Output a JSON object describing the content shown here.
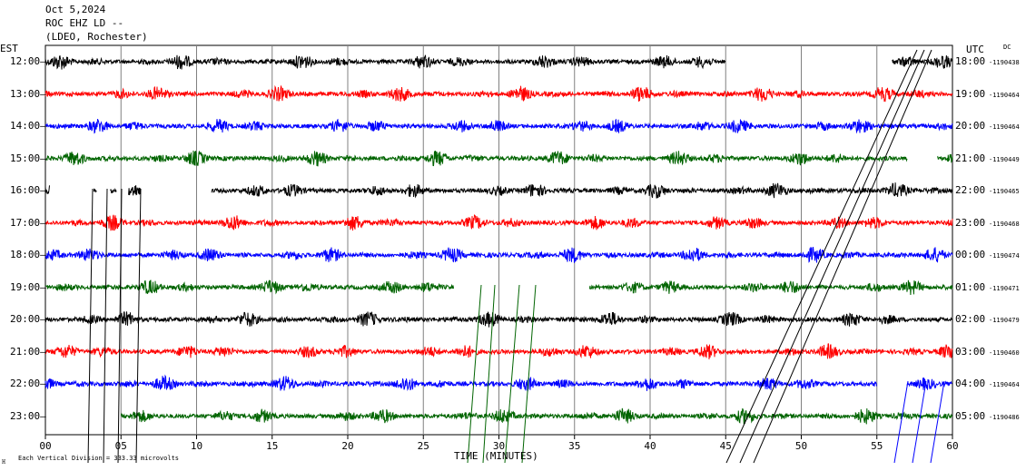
{
  "header": {
    "line1": "Oct 5,2024",
    "line2": "ROC EHZ LD --",
    "line3": "(LDEO, Rochester)"
  },
  "left_axis_title": "EST",
  "right_axis_title": "UTC",
  "dc_label": "DC",
  "footer_note": "Each Vertical Division = 333.33 microvolts",
  "footer_mark": "ℍ",
  "colors": {
    "black": "#000000",
    "red": "#ff0000",
    "blue": "#0000ff",
    "green": "#006400",
    "grid": "#808080"
  },
  "chart_data": {
    "type": "line",
    "title": "ROC EHZ LD --",
    "xlabel": "TIME (MINUTES)",
    "x_ticks": [
      "00",
      "05",
      "10",
      "15",
      "20",
      "25",
      "30",
      "35",
      "40",
      "45",
      "50",
      "55",
      "60"
    ],
    "xlim": [
      0,
      60
    ],
    "grid": true,
    "rows": [
      {
        "est": "12:00",
        "utc": "18:00",
        "dc": "-1190438",
        "color": "black",
        "segments": [
          [
            0,
            45
          ],
          [
            56,
            60
          ]
        ]
      },
      {
        "est": "13:00",
        "utc": "19:00",
        "dc": "-1190464",
        "color": "red",
        "segments": [
          [
            0,
            60
          ]
        ]
      },
      {
        "est": "14:00",
        "utc": "20:00",
        "dc": "-1190464",
        "color": "blue",
        "segments": [
          [
            0,
            60
          ]
        ]
      },
      {
        "est": "15:00",
        "utc": "21:00",
        "dc": "-1190449",
        "color": "green",
        "segments": [
          [
            0,
            57
          ],
          [
            59,
            60
          ]
        ]
      },
      {
        "est": "16:00",
        "utc": "22:00",
        "dc": "-1190465",
        "color": "black",
        "segments": [
          [
            0,
            0.3
          ],
          [
            3.2,
            3.4
          ],
          [
            4.3,
            4.7
          ],
          [
            5.5,
            6.3
          ],
          [
            11,
            60
          ]
        ]
      },
      {
        "est": "17:00",
        "utc": "23:00",
        "dc": "-1190468",
        "color": "red",
        "segments": [
          [
            0,
            60
          ]
        ]
      },
      {
        "est": "18:00",
        "utc": "00:00",
        "dc": "-1190474",
        "color": "blue",
        "segments": [
          [
            0,
            60
          ]
        ]
      },
      {
        "est": "19:00",
        "utc": "01:00",
        "dc": "-1190471",
        "color": "green",
        "segments": [
          [
            0,
            27
          ],
          [
            36,
            60
          ]
        ]
      },
      {
        "est": "20:00",
        "utc": "02:00",
        "dc": "-1190479",
        "color": "black",
        "segments": [
          [
            0,
            60
          ]
        ]
      },
      {
        "est": "21:00",
        "utc": "03:00",
        "dc": "-1190460",
        "color": "red",
        "segments": [
          [
            0,
            60
          ]
        ]
      },
      {
        "est": "22:00",
        "utc": "04:00",
        "dc": "-1190464",
        "color": "blue",
        "segments": [
          [
            0,
            55
          ],
          [
            57,
            60
          ]
        ]
      },
      {
        "est": "23:00",
        "utc": "05:00",
        "dc": "-1190486",
        "color": "green",
        "segments": [
          [
            5,
            60
          ]
        ]
      }
    ]
  }
}
